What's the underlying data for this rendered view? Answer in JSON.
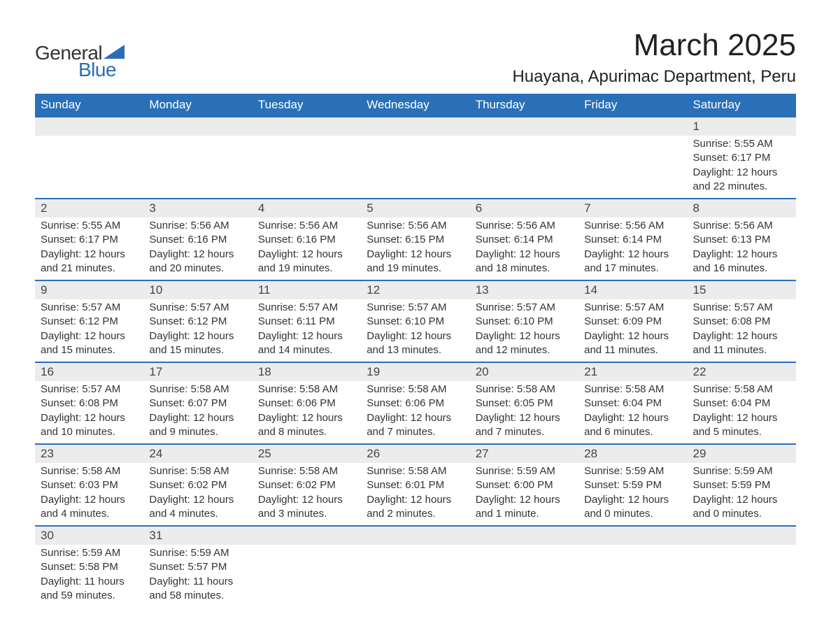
{
  "logo": {
    "text_general": "General",
    "text_blue": "Blue",
    "triangle_color": "#2a6db5"
  },
  "header": {
    "month_title": "March 2025",
    "location": "Huayana, Apurimac Department, Peru"
  },
  "colors": {
    "header_bg": "#2a70b8",
    "header_text": "#ffffff",
    "daynum_bg": "#ececec",
    "border_accent": "#2a70b8",
    "body_text": "#333333"
  },
  "daynames": [
    "Sunday",
    "Monday",
    "Tuesday",
    "Wednesday",
    "Thursday",
    "Friday",
    "Saturday"
  ],
  "weeks": [
    {
      "days": [
        {
          "n": "",
          "sunrise": "",
          "sunset": "",
          "daylight1": "",
          "daylight2": ""
        },
        {
          "n": "",
          "sunrise": "",
          "sunset": "",
          "daylight1": "",
          "daylight2": ""
        },
        {
          "n": "",
          "sunrise": "",
          "sunset": "",
          "daylight1": "",
          "daylight2": ""
        },
        {
          "n": "",
          "sunrise": "",
          "sunset": "",
          "daylight1": "",
          "daylight2": ""
        },
        {
          "n": "",
          "sunrise": "",
          "sunset": "",
          "daylight1": "",
          "daylight2": ""
        },
        {
          "n": "",
          "sunrise": "",
          "sunset": "",
          "daylight1": "",
          "daylight2": ""
        },
        {
          "n": "1",
          "sunrise": "Sunrise: 5:55 AM",
          "sunset": "Sunset: 6:17 PM",
          "daylight1": "Daylight: 12 hours",
          "daylight2": "and 22 minutes."
        }
      ]
    },
    {
      "days": [
        {
          "n": "2",
          "sunrise": "Sunrise: 5:55 AM",
          "sunset": "Sunset: 6:17 PM",
          "daylight1": "Daylight: 12 hours",
          "daylight2": "and 21 minutes."
        },
        {
          "n": "3",
          "sunrise": "Sunrise: 5:56 AM",
          "sunset": "Sunset: 6:16 PM",
          "daylight1": "Daylight: 12 hours",
          "daylight2": "and 20 minutes."
        },
        {
          "n": "4",
          "sunrise": "Sunrise: 5:56 AM",
          "sunset": "Sunset: 6:16 PM",
          "daylight1": "Daylight: 12 hours",
          "daylight2": "and 19 minutes."
        },
        {
          "n": "5",
          "sunrise": "Sunrise: 5:56 AM",
          "sunset": "Sunset: 6:15 PM",
          "daylight1": "Daylight: 12 hours",
          "daylight2": "and 19 minutes."
        },
        {
          "n": "6",
          "sunrise": "Sunrise: 5:56 AM",
          "sunset": "Sunset: 6:14 PM",
          "daylight1": "Daylight: 12 hours",
          "daylight2": "and 18 minutes."
        },
        {
          "n": "7",
          "sunrise": "Sunrise: 5:56 AM",
          "sunset": "Sunset: 6:14 PM",
          "daylight1": "Daylight: 12 hours",
          "daylight2": "and 17 minutes."
        },
        {
          "n": "8",
          "sunrise": "Sunrise: 5:56 AM",
          "sunset": "Sunset: 6:13 PM",
          "daylight1": "Daylight: 12 hours",
          "daylight2": "and 16 minutes."
        }
      ]
    },
    {
      "days": [
        {
          "n": "9",
          "sunrise": "Sunrise: 5:57 AM",
          "sunset": "Sunset: 6:12 PM",
          "daylight1": "Daylight: 12 hours",
          "daylight2": "and 15 minutes."
        },
        {
          "n": "10",
          "sunrise": "Sunrise: 5:57 AM",
          "sunset": "Sunset: 6:12 PM",
          "daylight1": "Daylight: 12 hours",
          "daylight2": "and 15 minutes."
        },
        {
          "n": "11",
          "sunrise": "Sunrise: 5:57 AM",
          "sunset": "Sunset: 6:11 PM",
          "daylight1": "Daylight: 12 hours",
          "daylight2": "and 14 minutes."
        },
        {
          "n": "12",
          "sunrise": "Sunrise: 5:57 AM",
          "sunset": "Sunset: 6:10 PM",
          "daylight1": "Daylight: 12 hours",
          "daylight2": "and 13 minutes."
        },
        {
          "n": "13",
          "sunrise": "Sunrise: 5:57 AM",
          "sunset": "Sunset: 6:10 PM",
          "daylight1": "Daylight: 12 hours",
          "daylight2": "and 12 minutes."
        },
        {
          "n": "14",
          "sunrise": "Sunrise: 5:57 AM",
          "sunset": "Sunset: 6:09 PM",
          "daylight1": "Daylight: 12 hours",
          "daylight2": "and 11 minutes."
        },
        {
          "n": "15",
          "sunrise": "Sunrise: 5:57 AM",
          "sunset": "Sunset: 6:08 PM",
          "daylight1": "Daylight: 12 hours",
          "daylight2": "and 11 minutes."
        }
      ]
    },
    {
      "days": [
        {
          "n": "16",
          "sunrise": "Sunrise: 5:57 AM",
          "sunset": "Sunset: 6:08 PM",
          "daylight1": "Daylight: 12 hours",
          "daylight2": "and 10 minutes."
        },
        {
          "n": "17",
          "sunrise": "Sunrise: 5:58 AM",
          "sunset": "Sunset: 6:07 PM",
          "daylight1": "Daylight: 12 hours",
          "daylight2": "and 9 minutes."
        },
        {
          "n": "18",
          "sunrise": "Sunrise: 5:58 AM",
          "sunset": "Sunset: 6:06 PM",
          "daylight1": "Daylight: 12 hours",
          "daylight2": "and 8 minutes."
        },
        {
          "n": "19",
          "sunrise": "Sunrise: 5:58 AM",
          "sunset": "Sunset: 6:06 PM",
          "daylight1": "Daylight: 12 hours",
          "daylight2": "and 7 minutes."
        },
        {
          "n": "20",
          "sunrise": "Sunrise: 5:58 AM",
          "sunset": "Sunset: 6:05 PM",
          "daylight1": "Daylight: 12 hours",
          "daylight2": "and 7 minutes."
        },
        {
          "n": "21",
          "sunrise": "Sunrise: 5:58 AM",
          "sunset": "Sunset: 6:04 PM",
          "daylight1": "Daylight: 12 hours",
          "daylight2": "and 6 minutes."
        },
        {
          "n": "22",
          "sunrise": "Sunrise: 5:58 AM",
          "sunset": "Sunset: 6:04 PM",
          "daylight1": "Daylight: 12 hours",
          "daylight2": "and 5 minutes."
        }
      ]
    },
    {
      "days": [
        {
          "n": "23",
          "sunrise": "Sunrise: 5:58 AM",
          "sunset": "Sunset: 6:03 PM",
          "daylight1": "Daylight: 12 hours",
          "daylight2": "and 4 minutes."
        },
        {
          "n": "24",
          "sunrise": "Sunrise: 5:58 AM",
          "sunset": "Sunset: 6:02 PM",
          "daylight1": "Daylight: 12 hours",
          "daylight2": "and 4 minutes."
        },
        {
          "n": "25",
          "sunrise": "Sunrise: 5:58 AM",
          "sunset": "Sunset: 6:02 PM",
          "daylight1": "Daylight: 12 hours",
          "daylight2": "and 3 minutes."
        },
        {
          "n": "26",
          "sunrise": "Sunrise: 5:58 AM",
          "sunset": "Sunset: 6:01 PM",
          "daylight1": "Daylight: 12 hours",
          "daylight2": "and 2 minutes."
        },
        {
          "n": "27",
          "sunrise": "Sunrise: 5:59 AM",
          "sunset": "Sunset: 6:00 PM",
          "daylight1": "Daylight: 12 hours",
          "daylight2": "and 1 minute."
        },
        {
          "n": "28",
          "sunrise": "Sunrise: 5:59 AM",
          "sunset": "Sunset: 5:59 PM",
          "daylight1": "Daylight: 12 hours",
          "daylight2": "and 0 minutes."
        },
        {
          "n": "29",
          "sunrise": "Sunrise: 5:59 AM",
          "sunset": "Sunset: 5:59 PM",
          "daylight1": "Daylight: 12 hours",
          "daylight2": "and 0 minutes."
        }
      ]
    },
    {
      "days": [
        {
          "n": "30",
          "sunrise": "Sunrise: 5:59 AM",
          "sunset": "Sunset: 5:58 PM",
          "daylight1": "Daylight: 11 hours",
          "daylight2": "and 59 minutes."
        },
        {
          "n": "31",
          "sunrise": "Sunrise: 5:59 AM",
          "sunset": "Sunset: 5:57 PM",
          "daylight1": "Daylight: 11 hours",
          "daylight2": "and 58 minutes."
        },
        {
          "n": "",
          "sunrise": "",
          "sunset": "",
          "daylight1": "",
          "daylight2": ""
        },
        {
          "n": "",
          "sunrise": "",
          "sunset": "",
          "daylight1": "",
          "daylight2": ""
        },
        {
          "n": "",
          "sunrise": "",
          "sunset": "",
          "daylight1": "",
          "daylight2": ""
        },
        {
          "n": "",
          "sunrise": "",
          "sunset": "",
          "daylight1": "",
          "daylight2": ""
        },
        {
          "n": "",
          "sunrise": "",
          "sunset": "",
          "daylight1": "",
          "daylight2": ""
        }
      ]
    }
  ]
}
